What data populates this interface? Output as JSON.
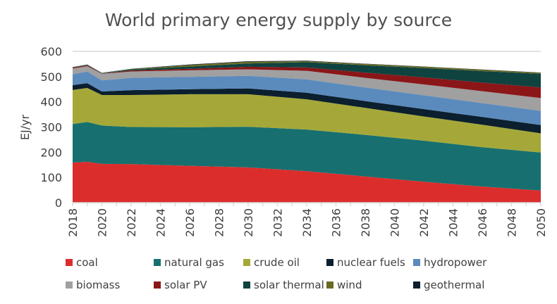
{
  "chart_data": {
    "type": "area",
    "stacked": true,
    "title": "World primary energy supply by source",
    "xlabel": "",
    "ylabel": "EJ/yr",
    "ylim": [
      0,
      600
    ],
    "yticks": [
      0,
      100,
      200,
      300,
      400,
      500,
      600
    ],
    "xlim": [
      2018,
      2050
    ],
    "xticks": [
      2018,
      2020,
      2022,
      2024,
      2026,
      2028,
      2030,
      2032,
      2034,
      2036,
      2038,
      2040,
      2042,
      2044,
      2046,
      2048,
      2050
    ],
    "legend": "bottom",
    "x": [
      2018,
      2019,
      2020,
      2022,
      2026,
      2030,
      2034,
      2038,
      2042,
      2046,
      2050
    ],
    "series": [
      {
        "name": "coal",
        "color": "#dc2d2d",
        "values": [
          159,
          162,
          154,
          153,
          146,
          140,
          125,
          104,
          83,
          64,
          48
        ]
      },
      {
        "name": "natural gas",
        "color": "#17706f",
        "values": [
          153,
          158,
          152,
          147,
          153,
          161,
          165,
          165,
          163,
          156,
          151
        ]
      },
      {
        "name": "crude oil",
        "color": "#a5a838",
        "values": [
          135,
          135,
          121,
          127,
          131,
          129,
          120,
          107,
          96,
          89,
          76
        ]
      },
      {
        "name": "nuclear fuels",
        "color": "#0b1f2e",
        "values": [
          19,
          19,
          14,
          19,
          20,
          23,
          26,
          27,
          29,
          31,
          33
        ]
      },
      {
        "name": "hydropower",
        "color": "#5b8bbd",
        "values": [
          43,
          46,
          44,
          49,
          49,
          50,
          53,
          54,
          55,
          55,
          56
        ]
      },
      {
        "name": "biomass",
        "color": "#a0a0a0",
        "values": [
          23,
          21,
          26,
          25,
          26,
          26,
          34,
          38,
          43,
          47,
          51
        ]
      },
      {
        "name": "solar PV",
        "color": "#8b1618",
        "values": [
          3,
          3,
          1,
          4,
          6,
          10,
          13,
          21,
          28,
          34,
          42
        ]
      },
      {
        "name": "solar thermal",
        "color": "#0e4340",
        "values": [
          1,
          2,
          1,
          4,
          9,
          13,
          21,
          29,
          37,
          46,
          54
        ]
      },
      {
        "name": "wind",
        "color": "#6a6b22",
        "values": [
          1,
          1,
          1,
          2,
          6,
          7,
          4,
          5,
          5,
          5,
          4
        ]
      },
      {
        "name": "geothermal",
        "color": "#0b1f2e",
        "values": [
          1,
          1,
          1,
          1,
          2,
          2,
          2,
          1,
          1,
          1,
          1
        ]
      }
    ]
  }
}
